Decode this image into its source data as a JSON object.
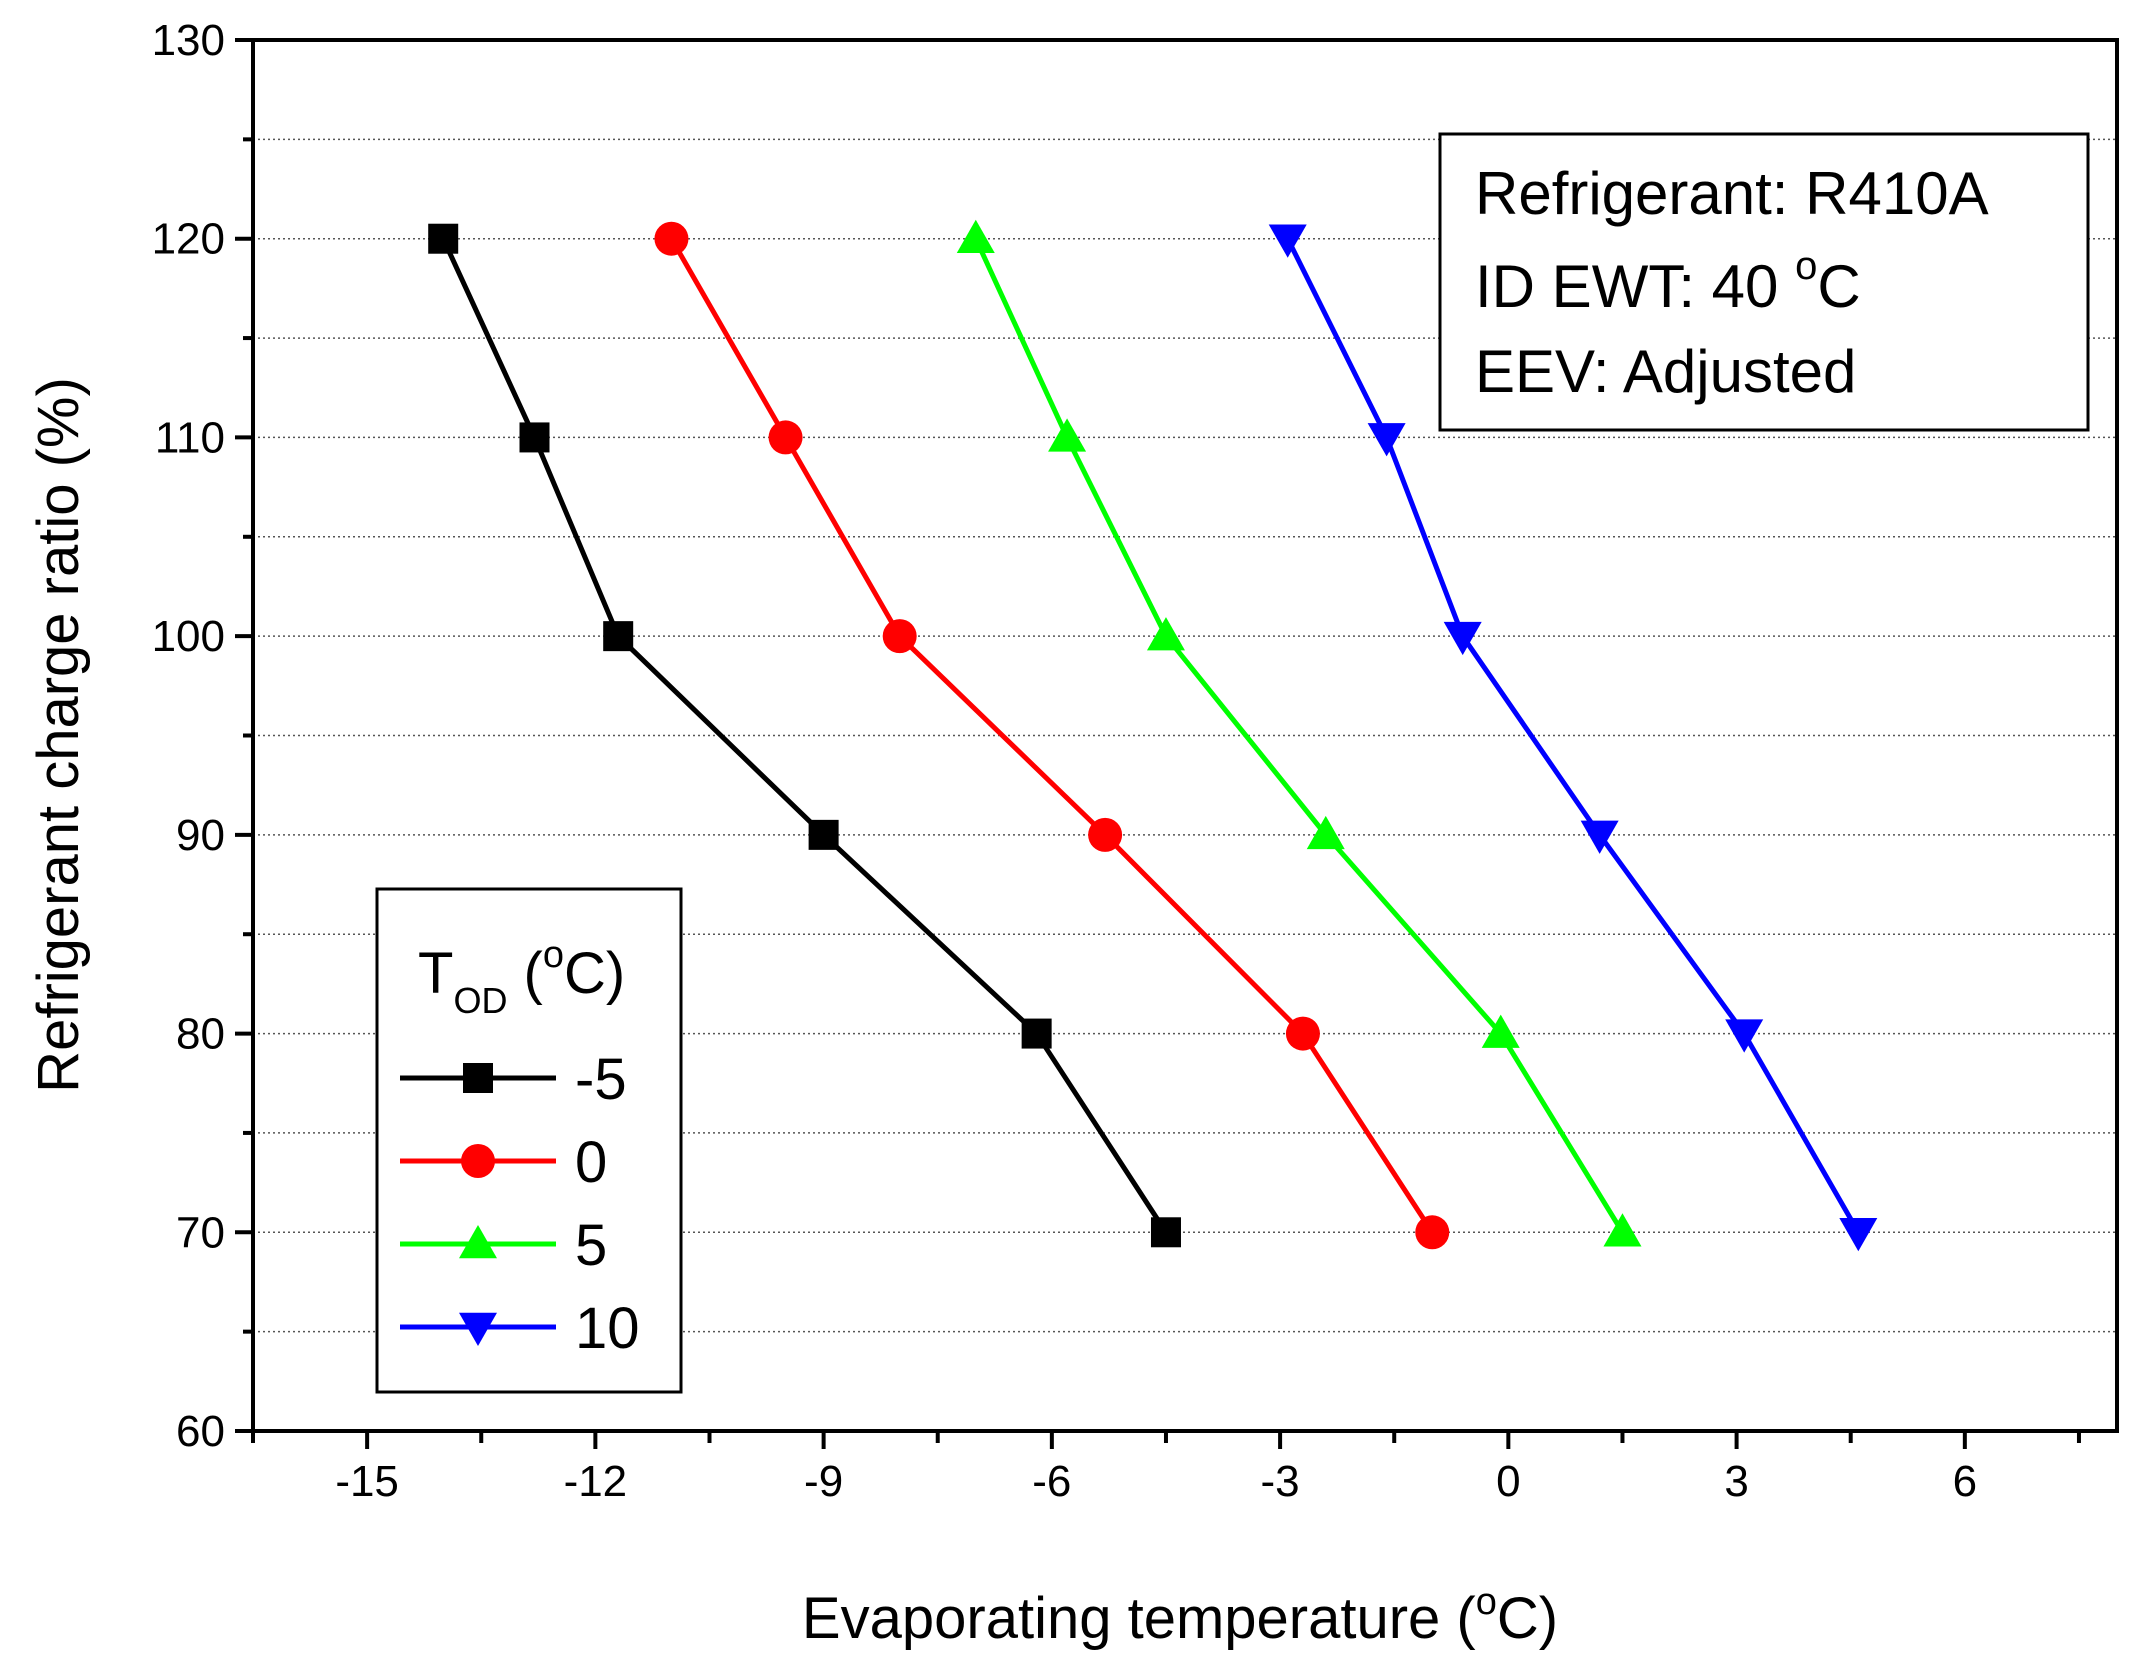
{
  "chart_data": {
    "type": "line",
    "title": "",
    "xlabel_main": "Evaporating temperature (",
    "xlabel_sup": "o",
    "xlabel_end": "C)",
    "ylabel": "Refrigerant charge ratio (%)",
    "xlim": [
      -16.5,
      8
    ],
    "ylim": [
      60,
      130
    ],
    "xticks": [
      -15,
      -12,
      -9,
      -6,
      -3,
      0,
      3,
      6
    ],
    "yticks": [
      60,
      70,
      80,
      90,
      100,
      110,
      120,
      130
    ],
    "grid": "horizontal dotted",
    "info_box": {
      "line1": "Refrigerant: R410A",
      "line2_main": "ID EWT: 40 ",
      "line2_sup": "o",
      "line2_end": "C",
      "line3": "EEV: Adjusted"
    },
    "legend": {
      "title_main": "T",
      "title_sub": "OD",
      "title_mid": " (",
      "title_sup": "o",
      "title_end": "C)",
      "placement": "bottom-left"
    },
    "series": [
      {
        "name": "-5",
        "color": "#000000",
        "marker": "square",
        "x": [
          -14.0,
          -12.8,
          -11.7,
          -9.0,
          -6.2,
          -4.5
        ],
        "y": [
          120,
          110,
          100,
          90,
          80,
          70
        ]
      },
      {
        "name": "0",
        "color": "#ff0000",
        "marker": "circle",
        "x": [
          -11.0,
          -9.5,
          -8.0,
          -5.3,
          -2.7,
          -1.0
        ],
        "y": [
          120,
          110,
          100,
          90,
          80,
          70
        ]
      },
      {
        "name": "5",
        "color": "#00ff00",
        "marker": "triangle-up",
        "x": [
          -7.0,
          -5.8,
          -4.5,
          -2.4,
          -0.1,
          1.5
        ],
        "y": [
          120,
          110,
          100,
          90,
          80,
          70
        ]
      },
      {
        "name": "10",
        "color": "#0000ff",
        "marker": "triangle-down",
        "x": [
          -2.9,
          -1.6,
          -0.6,
          1.2,
          3.1,
          4.6
        ],
        "y": [
          120,
          110,
          100,
          90,
          80,
          70
        ]
      }
    ]
  }
}
